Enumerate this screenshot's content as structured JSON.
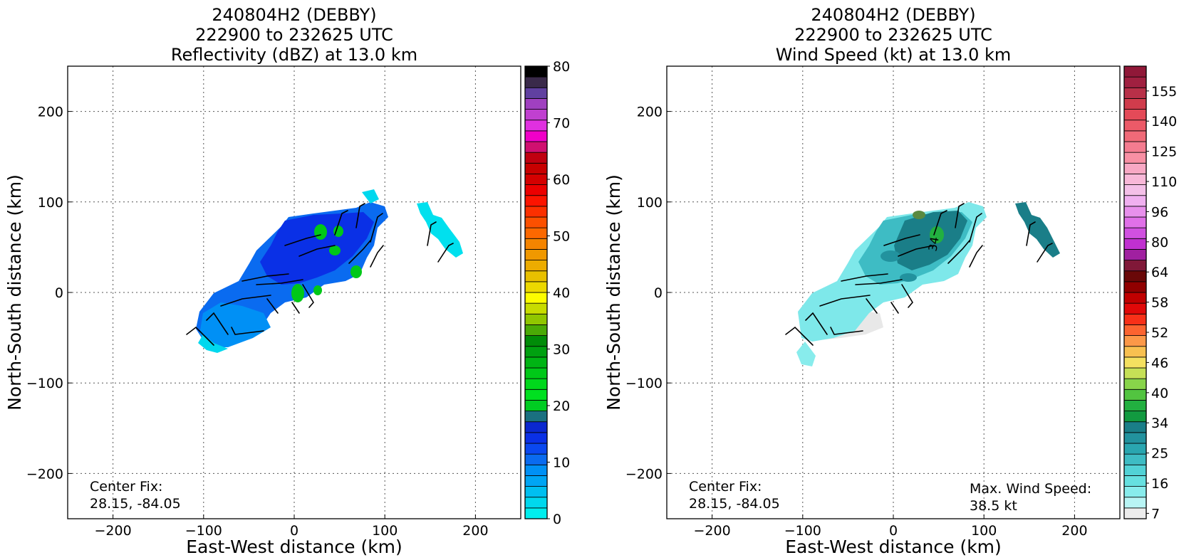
{
  "chart_data": [
    {
      "type": "heatmap",
      "title_lines": [
        "240804H2 (DEBBY)",
        "222900 to 232625 UTC",
        "Reflectivity (dBZ) at 13.0 km"
      ],
      "xlabel": "East-West distance (km)",
      "ylabel": "North-South distance (km)",
      "xlim": [
        -250,
        250
      ],
      "ylim": [
        -250,
        250
      ],
      "xticks": [
        -200,
        -100,
        0,
        100,
        200
      ],
      "yticks": [
        -200,
        -100,
        0,
        100,
        200
      ],
      "grid": true,
      "colorbar": {
        "min": 0,
        "max": 80,
        "tick_values": [
          0,
          10,
          20,
          30,
          40,
          50,
          60,
          70,
          80
        ],
        "bins": [
          0,
          2,
          4,
          6,
          8,
          10,
          12,
          14,
          16,
          18,
          20,
          22,
          24,
          26,
          28,
          30,
          32,
          34,
          36,
          38,
          40,
          42,
          44,
          46,
          48,
          50,
          52,
          54,
          56,
          58,
          60,
          62,
          64,
          66,
          68,
          70,
          72,
          74,
          76,
          78,
          80
        ],
        "colors": [
          "#00eeee",
          "#00d8ee",
          "#00bff0",
          "#00a5f4",
          "#0090f5",
          "#0a6bf0",
          "#0a48f0",
          "#0a30e6",
          "#0a28cf",
          "#1a7080",
          "#00cc22",
          "#00e020",
          "#00d81c",
          "#00c818",
          "#00b414",
          "#00a010",
          "#008c08",
          "#4aaa06",
          "#90c600",
          "#c8dc00",
          "#fcfc00",
          "#ecd800",
          "#e8c000",
          "#ecac00",
          "#f09800",
          "#f48400",
          "#fc6800",
          "#fc5000",
          "#fc3000",
          "#fc1400",
          "#ec0000",
          "#d40000",
          "#c80000",
          "#c00010",
          "#d01070",
          "#f000c8",
          "#e030e0",
          "#c040d0",
          "#a040c0",
          "#6040a0",
          "#3a2a4a",
          "#000000"
        ]
      },
      "annotation": {
        "label": "Center Fix:",
        "value": "28.15, -84.05"
      },
      "background": "#ffffff"
    },
    {
      "type": "heatmap",
      "title_lines": [
        "240804H2 (DEBBY)",
        "222900 to 232625 UTC",
        "Wind Speed (kt) at 13.0 km"
      ],
      "xlabel": "East-West distance (km)",
      "ylabel": "North-South distance (km)",
      "xlim": [
        -250,
        250
      ],
      "ylim": [
        -250,
        250
      ],
      "xticks": [
        -200,
        -100,
        0,
        100,
        200
      ],
      "yticks": [
        -200,
        -100,
        0,
        100,
        200
      ],
      "grid": true,
      "colorbar": {
        "tick_labels": [
          "7",
          "16",
          "25",
          "34",
          "40",
          "46",
          "52",
          "58",
          "64",
          "80",
          "96",
          "110",
          "125",
          "140",
          "155"
        ],
        "colors": [
          "#ececec",
          "#b8f4f4",
          "#88ecec",
          "#66e0e0",
          "#52d2d6",
          "#3ebcc4",
          "#2aa6b0",
          "#22929e",
          "#1a7e88",
          "#129a40",
          "#22b040",
          "#52c440",
          "#88d44a",
          "#c6e056",
          "#f4e060",
          "#f8c050",
          "#fc9848",
          "#fc6430",
          "#f83018",
          "#e00808",
          "#c00000",
          "#900000",
          "#6a0808",
          "#801838",
          "#a020a0",
          "#c030d0",
          "#d050e0",
          "#e070e8",
          "#e890ec",
          "#f0b0f0",
          "#f4c0e8",
          "#f8b8d8",
          "#f8a8c4",
          "#f890a4",
          "#f47c90",
          "#f06a78",
          "#ec5a68",
          "#e44a58",
          "#d03c4c",
          "#b83048",
          "#a02040",
          "#901838"
        ]
      },
      "annotation": {
        "label": "Center Fix:",
        "value": "28.15, -84.05"
      },
      "annotation2": {
        "label": "Max. Wind Speed:",
        "value": "38.5 kt"
      },
      "embedded_label": "34",
      "background": "#ffffff"
    }
  ]
}
